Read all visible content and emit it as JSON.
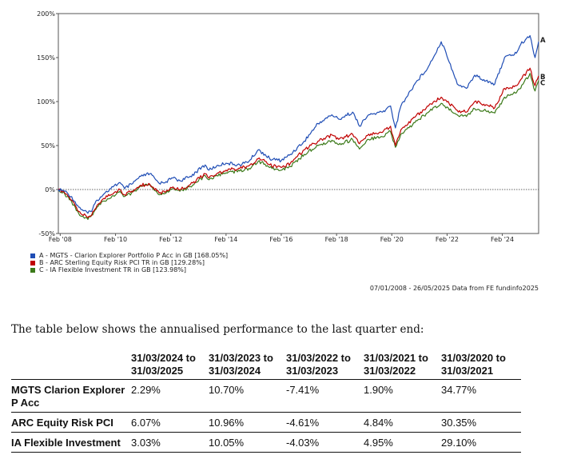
{
  "chart_data": {
    "type": "line",
    "y_unit": "%",
    "ylim": [
      -50,
      200
    ],
    "y_ticks": [
      "200%",
      "150%",
      "100%",
      "50%",
      "0%",
      "-50%"
    ],
    "y_tick_values": [
      200,
      150,
      100,
      50,
      0,
      -50
    ],
    "x_range": [
      "2008-01-07",
      "2025-05-26"
    ],
    "x_ticks": [
      "Feb '08",
      "Feb '10",
      "Feb '12",
      "Feb '14",
      "Feb '16",
      "Feb '18",
      "Feb '20",
      "Feb '22",
      "Feb '24"
    ],
    "x_tick_dates": [
      "2008-02-01",
      "2010-02-01",
      "2012-02-01",
      "2014-02-01",
      "2016-02-01",
      "2018-02-01",
      "2020-02-01",
      "2022-02-01",
      "2024-02-01"
    ],
    "grid": false,
    "zero_line": "dotted",
    "series": [
      {
        "name": "A - MGTS - Clarion Explorer Portfolio P Acc in GB [168.05%]",
        "end_label": "A",
        "color": "#1f4db5",
        "points": [
          [
            "2008-01-07",
            0
          ],
          [
            "2008-04-01",
            -2
          ],
          [
            "2008-07-01",
            -8
          ],
          [
            "2008-10-01",
            -20
          ],
          [
            "2009-02-01",
            -27
          ],
          [
            "2009-03-10",
            -25
          ],
          [
            "2009-06-01",
            -12
          ],
          [
            "2009-09-01",
            -5
          ],
          [
            "2010-01-01",
            3
          ],
          [
            "2010-04-01",
            8
          ],
          [
            "2010-06-01",
            1
          ],
          [
            "2010-09-01",
            6
          ],
          [
            "2011-01-01",
            15
          ],
          [
            "2011-05-01",
            18
          ],
          [
            "2011-09-01",
            7
          ],
          [
            "2011-12-01",
            9
          ],
          [
            "2012-03-01",
            13
          ],
          [
            "2012-06-01",
            10
          ],
          [
            "2012-10-01",
            14
          ],
          [
            "2013-01-01",
            20
          ],
          [
            "2013-05-01",
            28
          ],
          [
            "2013-06-20",
            22
          ],
          [
            "2013-10-01",
            27
          ],
          [
            "2014-02-01",
            30
          ],
          [
            "2014-08-01",
            28
          ],
          [
            "2014-12-01",
            32
          ],
          [
            "2015-04-01",
            45
          ],
          [
            "2015-07-01",
            40
          ],
          [
            "2015-09-01",
            35
          ],
          [
            "2016-02-01",
            33
          ],
          [
            "2016-06-01",
            40
          ],
          [
            "2016-12-01",
            55
          ],
          [
            "2017-06-01",
            75
          ],
          [
            "2017-12-01",
            85
          ],
          [
            "2018-03-01",
            80
          ],
          [
            "2018-09-01",
            88
          ],
          [
            "2018-12-01",
            72
          ],
          [
            "2019-04-01",
            85
          ],
          [
            "2019-10-01",
            88
          ],
          [
            "2020-01-15",
            95
          ],
          [
            "2020-03-20",
            70
          ],
          [
            "2020-06-01",
            95
          ],
          [
            "2020-12-01",
            120
          ],
          [
            "2021-06-01",
            140
          ],
          [
            "2021-11-15",
            168
          ],
          [
            "2022-01-01",
            160
          ],
          [
            "2022-06-15",
            120
          ],
          [
            "2022-10-15",
            115
          ],
          [
            "2023-02-01",
            130
          ],
          [
            "2023-06-01",
            125
          ],
          [
            "2023-10-25",
            120
          ],
          [
            "2024-03-01",
            150
          ],
          [
            "2024-08-05",
            155
          ],
          [
            "2024-10-01",
            165
          ],
          [
            "2025-02-01",
            175
          ],
          [
            "2025-04-08",
            150
          ],
          [
            "2025-05-26",
            168.05
          ]
        ]
      },
      {
        "name": "B - ARC Sterling Equity Risk PCI TR in GB [129.28%]",
        "end_label": "B",
        "color": "#c00000",
        "points": [
          [
            "2008-01-07",
            0
          ],
          [
            "2008-04-01",
            -4
          ],
          [
            "2008-07-01",
            -12
          ],
          [
            "2008-10-01",
            -25
          ],
          [
            "2009-02-01",
            -32
          ],
          [
            "2009-03-10",
            -30
          ],
          [
            "2009-06-01",
            -18
          ],
          [
            "2009-09-01",
            -10
          ],
          [
            "2010-01-01",
            -5
          ],
          [
            "2010-04-01",
            0
          ],
          [
            "2010-06-01",
            -6
          ],
          [
            "2010-09-01",
            -2
          ],
          [
            "2011-01-01",
            5
          ],
          [
            "2011-05-01",
            6
          ],
          [
            "2011-09-01",
            -4
          ],
          [
            "2011-12-01",
            -2
          ],
          [
            "2012-03-01",
            3
          ],
          [
            "2012-06-01",
            0
          ],
          [
            "2012-10-01",
            5
          ],
          [
            "2013-01-01",
            10
          ],
          [
            "2013-05-01",
            18
          ],
          [
            "2013-06-20",
            13
          ],
          [
            "2013-10-01",
            18
          ],
          [
            "2014-02-01",
            22
          ],
          [
            "2014-08-01",
            24
          ],
          [
            "2014-12-01",
            27
          ],
          [
            "2015-04-01",
            35
          ],
          [
            "2015-07-01",
            32
          ],
          [
            "2015-09-01",
            28
          ],
          [
            "2016-02-01",
            25
          ],
          [
            "2016-06-01",
            30
          ],
          [
            "2016-12-01",
            45
          ],
          [
            "2017-06-01",
            55
          ],
          [
            "2017-12-01",
            62
          ],
          [
            "2018-03-01",
            57
          ],
          [
            "2018-09-01",
            63
          ],
          [
            "2018-12-01",
            52
          ],
          [
            "2019-04-01",
            63
          ],
          [
            "2019-10-01",
            65
          ],
          [
            "2020-01-15",
            72
          ],
          [
            "2020-03-20",
            50
          ],
          [
            "2020-06-01",
            68
          ],
          [
            "2020-12-01",
            82
          ],
          [
            "2021-06-01",
            95
          ],
          [
            "2021-11-15",
            105
          ],
          [
            "2022-01-01",
            102
          ],
          [
            "2022-06-15",
            90
          ],
          [
            "2022-10-15",
            88
          ],
          [
            "2023-02-01",
            100
          ],
          [
            "2023-06-01",
            97
          ],
          [
            "2023-10-25",
            93
          ],
          [
            "2024-03-01",
            115
          ],
          [
            "2024-08-05",
            118
          ],
          [
            "2024-10-01",
            125
          ],
          [
            "2025-02-01",
            138
          ],
          [
            "2025-04-08",
            118
          ],
          [
            "2025-05-26",
            129.28
          ]
        ]
      },
      {
        "name": "C - IA Flexible Investment TR in GB [123.98%]",
        "end_label": "C",
        "color": "#3c7a1a",
        "points": [
          [
            "2008-01-07",
            0
          ],
          [
            "2008-04-01",
            -5
          ],
          [
            "2008-07-01",
            -14
          ],
          [
            "2008-10-01",
            -27
          ],
          [
            "2009-02-01",
            -34
          ],
          [
            "2009-03-10",
            -31
          ],
          [
            "2009-06-01",
            -20
          ],
          [
            "2009-09-01",
            -13
          ],
          [
            "2010-01-01",
            -7
          ],
          [
            "2010-04-01",
            -2
          ],
          [
            "2010-06-01",
            -8
          ],
          [
            "2010-09-01",
            -4
          ],
          [
            "2011-01-01",
            4
          ],
          [
            "2011-05-01",
            5
          ],
          [
            "2011-09-01",
            -6
          ],
          [
            "2011-12-01",
            -4
          ],
          [
            "2012-03-01",
            1
          ],
          [
            "2012-06-01",
            -2
          ],
          [
            "2012-10-01",
            3
          ],
          [
            "2013-01-01",
            8
          ],
          [
            "2013-05-01",
            16
          ],
          [
            "2013-06-20",
            11
          ],
          [
            "2013-10-01",
            16
          ],
          [
            "2014-02-01",
            19
          ],
          [
            "2014-08-01",
            21
          ],
          [
            "2014-12-01",
            24
          ],
          [
            "2015-04-01",
            32
          ],
          [
            "2015-07-01",
            29
          ],
          [
            "2015-09-01",
            25
          ],
          [
            "2016-02-01",
            22
          ],
          [
            "2016-06-01",
            26
          ],
          [
            "2016-12-01",
            40
          ],
          [
            "2017-06-01",
            50
          ],
          [
            "2017-12-01",
            56
          ],
          [
            "2018-03-01",
            51
          ],
          [
            "2018-09-01",
            57
          ],
          [
            "2018-12-01",
            46
          ],
          [
            "2019-04-01",
            57
          ],
          [
            "2019-10-01",
            60
          ],
          [
            "2020-01-15",
            66
          ],
          [
            "2020-03-20",
            48
          ],
          [
            "2020-06-01",
            63
          ],
          [
            "2020-12-01",
            76
          ],
          [
            "2021-06-01",
            88
          ],
          [
            "2021-11-15",
            98
          ],
          [
            "2022-01-01",
            95
          ],
          [
            "2022-06-15",
            85
          ],
          [
            "2022-10-15",
            83
          ],
          [
            "2023-02-01",
            92
          ],
          [
            "2023-06-01",
            90
          ],
          [
            "2023-10-25",
            87
          ],
          [
            "2024-03-01",
            105
          ],
          [
            "2024-08-05",
            110
          ],
          [
            "2024-10-01",
            115
          ],
          [
            "2025-02-01",
            132
          ],
          [
            "2025-04-08",
            112
          ],
          [
            "2025-05-26",
            123.98
          ]
        ]
      }
    ]
  },
  "source_note": "07/01/2008 - 26/05/2025 Data from FE fundinfo2025",
  "intro_text": "The table below shows the annualised performance to the last quarter end:",
  "table": {
    "headers": [
      "",
      "31/03/2024 to 31/03/2025",
      "31/03/2023 to 31/03/2024",
      "31/03/2022 to 31/03/2023",
      "31/03/2021 to 31/03/2022",
      "31/03/2020 to 31/03/2021"
    ],
    "rows": [
      {
        "fund": "MGTS Clarion Explorer P Acc",
        "values": [
          "2.29%",
          "10.70%",
          "-7.41%",
          "1.90%",
          "34.77%"
        ]
      },
      {
        "fund": "ARC Equity Risk PCI",
        "values": [
          "6.07%",
          "10.96%",
          "-4.61%",
          "4.84%",
          "30.35%"
        ]
      },
      {
        "fund": "IA Flexible Investment",
        "values": [
          "3.03%",
          "10.05%",
          "-4.03%",
          "4.95%",
          "29.10%"
        ]
      }
    ]
  }
}
